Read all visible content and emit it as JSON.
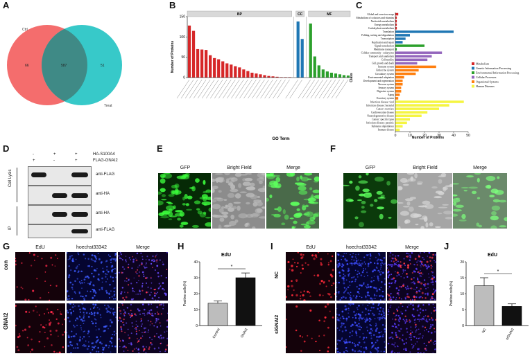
{
  "panels": {
    "A": "A",
    "B": "B",
    "C": "C",
    "D": "D",
    "E": "E",
    "F": "F",
    "G": "G",
    "H": "H",
    "I": "I",
    "J": "J"
  },
  "venn": {
    "left_label": "Ctrl",
    "right_label": "Treat",
    "left_only": "66",
    "overlap": "587",
    "right_only": "51",
    "left_color": "#f46d6d",
    "right_color": "#2cc6c6"
  },
  "chart_data": [
    {
      "type": "bar",
      "panel": "B",
      "xlabel": "GO Term",
      "ylabel": "Number of Proteins",
      "ylim": [
        0,
        150
      ],
      "groups": [
        {
          "name": "BP",
          "color": "#d62728",
          "values": [
            128,
            115,
            70,
            69,
            68,
            55,
            48,
            45,
            40,
            35,
            32,
            28,
            25,
            20,
            16,
            12,
            10,
            8,
            6,
            4,
            3,
            2,
            1,
            1,
            1
          ]
        },
        {
          "name": "CC",
          "color": "#1f77b4",
          "values": [
            138,
            95
          ]
        },
        {
          "name": "MF",
          "color": "#2ca02c",
          "values": [
            133,
            52,
            30,
            20,
            15,
            12,
            10,
            8,
            6,
            5
          ]
        }
      ]
    },
    {
      "type": "bar",
      "panel": "C",
      "orientation": "horizontal",
      "xlabel": "Number of Proteins",
      "ylabel": "Class",
      "xlim": [
        0,
        50
      ],
      "legend": [
        {
          "name": "Metabolism",
          "color": "#d62728"
        },
        {
          "name": "Genetic Information Processing",
          "color": "#1f77b4"
        },
        {
          "name": "Environmental Information Processing",
          "color": "#2ca02c"
        },
        {
          "name": "Cellular Processes",
          "color": "#9467bd"
        },
        {
          "name": "Organismal Systems",
          "color": "#ff7f0e"
        },
        {
          "name": "Human Diseases",
          "color": "#f5f542"
        }
      ],
      "bars": [
        {
          "label": "Global and overview maps",
          "value": 2,
          "cls": 0
        },
        {
          "label": "Metabolism of cofactors and vitamins",
          "value": 1,
          "cls": 0
        },
        {
          "label": "Nucleotide metabolism",
          "value": 1,
          "cls": 0
        },
        {
          "label": "Energy metabolism",
          "value": 1,
          "cls": 0
        },
        {
          "label": "Carbohydrate metabolism",
          "value": 1,
          "cls": 0
        },
        {
          "label": "Translation",
          "value": 40,
          "cls": 1
        },
        {
          "label": "Folding, sorting and degradation",
          "value": 10,
          "cls": 1
        },
        {
          "label": "Transcription",
          "value": 7,
          "cls": 1
        },
        {
          "label": "Replication and repair",
          "value": 5,
          "cls": 1
        },
        {
          "label": "Signal transduction",
          "value": 20,
          "cls": 2
        },
        {
          "label": "Membrane transport",
          "value": 1,
          "cls": 2
        },
        {
          "label": "Cellular community - eukaryotes",
          "value": 32,
          "cls": 3
        },
        {
          "label": "Transport and catabolism",
          "value": 25,
          "cls": 3
        },
        {
          "label": "Cell motility",
          "value": 22,
          "cls": 3
        },
        {
          "label": "Cell growth and death",
          "value": 15,
          "cls": 3
        },
        {
          "label": "Immune system",
          "value": 28,
          "cls": 4
        },
        {
          "label": "Endocrine system",
          "value": 16,
          "cls": 4
        },
        {
          "label": "Circulatory system",
          "value": 14,
          "cls": 4
        },
        {
          "label": "Environmental adaptation",
          "value": 6,
          "cls": 4
        },
        {
          "label": "Development and regeneration",
          "value": 5,
          "cls": 4
        },
        {
          "label": "Nervous system",
          "value": 5,
          "cls": 4
        },
        {
          "label": "Sensory system",
          "value": 4,
          "cls": 4
        },
        {
          "label": "Digestive system",
          "value": 4,
          "cls": 4
        },
        {
          "label": "Aging",
          "value": 3,
          "cls": 4
        },
        {
          "label": "Excretory system",
          "value": 2,
          "cls": 4
        },
        {
          "label": "Infectious disease: viral",
          "value": 47,
          "cls": 5
        },
        {
          "label": "Infectious disease: bacterial",
          "value": 37,
          "cls": 5
        },
        {
          "label": "Cancer: overview",
          "value": 30,
          "cls": 5
        },
        {
          "label": "Cardiovascular disease",
          "value": 22,
          "cls": 5
        },
        {
          "label": "Neurodegenerative disease",
          "value": 18,
          "cls": 5
        },
        {
          "label": "Cancer: specific types",
          "value": 10,
          "cls": 5
        },
        {
          "label": "Infectious disease: parasitic",
          "value": 8,
          "cls": 5
        },
        {
          "label": "Substance dependence",
          "value": 5,
          "cls": 5
        },
        {
          "label": "Immune disease",
          "value": 3,
          "cls": 5
        }
      ]
    },
    {
      "type": "bar",
      "panel": "H",
      "title": "EdU",
      "ylabel": "Positive cells(%)",
      "ylim": [
        0,
        40
      ],
      "yticks": [
        "0",
        "10",
        "20",
        "30",
        "40"
      ],
      "categories": [
        "Control",
        "GNAI2"
      ],
      "values": [
        14,
        30
      ],
      "errors": [
        1.5,
        3
      ],
      "colors": [
        "#bdbdbd",
        "#111111"
      ],
      "significance": "*"
    },
    {
      "type": "bar",
      "panel": "J",
      "title": "EdU",
      "ylabel": "Positive cells(%)",
      "ylim": [
        0,
        20
      ],
      "yticks": [
        "0",
        "5",
        "10",
        "15",
        "20"
      ],
      "categories": [
        "NC",
        "siGNAI2"
      ],
      "values": [
        12.5,
        6
      ],
      "errors": [
        2.5,
        0.8
      ],
      "colors": [
        "#bdbdbd",
        "#111111"
      ],
      "significance": "*"
    }
  ],
  "blot": {
    "row1_signs": [
      "-",
      "+",
      "+"
    ],
    "row2_signs": [
      "+",
      "-",
      "+"
    ],
    "row1_label": "HA-S100A4",
    "row2_label": "FLAG-GNAI2",
    "group1": "Cell Lysis",
    "group2": "IP",
    "strips": [
      "anti-FLAG",
      "anti-HA",
      "anti-HA",
      "anti-FLAG"
    ]
  },
  "micro_titles": {
    "gfp": "GFP",
    "bright": "Bright Field",
    "merge": "Merge",
    "edu": "EdU",
    "hoechst": "hoechst33342"
  },
  "row_labels": {
    "con": "con",
    "gnai2": "GNAI2",
    "nc": "NC",
    "signai2": "siGNAI2"
  }
}
